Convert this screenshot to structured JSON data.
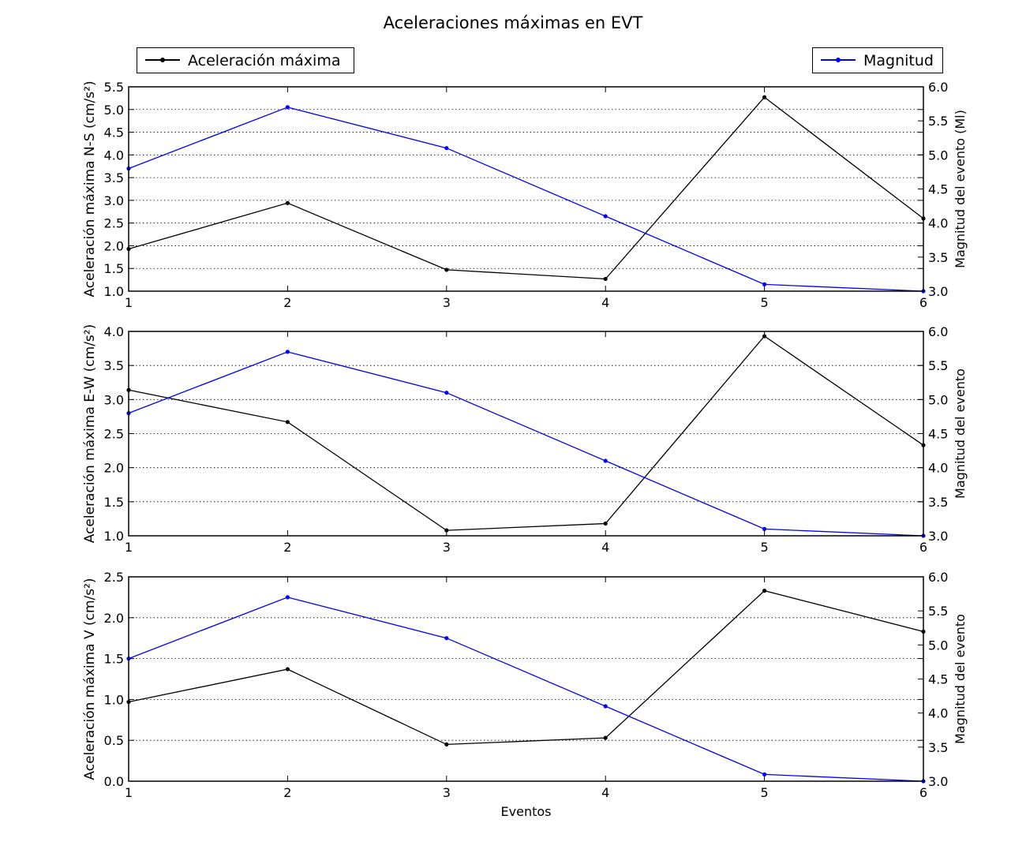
{
  "chart_data": {
    "type": "line",
    "title": "Aceleraciones máximas en EVT",
    "legend": {
      "left": {
        "label": "Aceleración máxima",
        "position": "upper-left",
        "color": "#000000"
      },
      "right": {
        "label": "Magnitud",
        "position": "upper-right",
        "color": "#0000ff"
      }
    },
    "xlabel": "Eventos",
    "x": [
      1,
      2,
      3,
      4,
      5,
      6
    ],
    "xlim": [
      1,
      6
    ],
    "x_ticks": [
      "1",
      "2",
      "3",
      "4",
      "5",
      "6"
    ],
    "grid": "horizontal dotted",
    "panels": [
      {
        "ylabel_left": "Aceleración máxima N-S (cm/s²)",
        "ylim_left": [
          1.0,
          5.5
        ],
        "yticks_left": [
          "1.0",
          "1.5",
          "2.0",
          "2.5",
          "3.0",
          "3.5",
          "4.0",
          "4.5",
          "5.0",
          "5.5"
        ],
        "ylabel_right": "Magnitud del evento (Ml)",
        "ylim_right": [
          3.0,
          6.0
        ],
        "yticks_right": [
          "3.0",
          "3.5",
          "4.0",
          "4.5",
          "5.0",
          "5.5",
          "6.0"
        ],
        "series": [
          {
            "name": "Aceleración máxima",
            "axis": "left",
            "color": "#000000",
            "values": [
              1.93,
              2.94,
              1.47,
              1.27,
              5.27,
              2.6
            ]
          },
          {
            "name": "Magnitud",
            "axis": "right",
            "color": "#0000ff",
            "values": [
              4.8,
              5.7,
              5.1,
              4.1,
              3.1,
              3.0
            ]
          }
        ]
      },
      {
        "ylabel_left": "Aceleración máxima E-W (cm/s²)",
        "ylim_left": [
          1.0,
          4.0
        ],
        "yticks_left": [
          "1.0",
          "1.5",
          "2.0",
          "2.5",
          "3.0",
          "3.5",
          "4.0"
        ],
        "ylabel_right": "Magnitud del evento",
        "ylim_right": [
          3.0,
          6.0
        ],
        "yticks_right": [
          "3.0",
          "3.5",
          "4.0",
          "4.5",
          "5.0",
          "5.5",
          "6.0"
        ],
        "series": [
          {
            "name": "Aceleración máxima",
            "axis": "left",
            "color": "#000000",
            "values": [
              3.14,
              2.67,
              1.08,
              1.18,
              3.93,
              2.33
            ]
          },
          {
            "name": "Magnitud",
            "axis": "right",
            "color": "#0000ff",
            "values": [
              4.8,
              5.7,
              5.1,
              4.1,
              3.1,
              3.0
            ]
          }
        ]
      },
      {
        "ylabel_left": "Aceleración máxima V (cm/s²)",
        "ylim_left": [
          0.0,
          2.5
        ],
        "yticks_left": [
          "0.0",
          "0.5",
          "1.0",
          "1.5",
          "2.0",
          "2.5"
        ],
        "ylabel_right": "Magnitud del evento",
        "ylim_right": [
          3.0,
          6.0
        ],
        "yticks_right": [
          "3.0",
          "3.5",
          "4.0",
          "4.5",
          "5.0",
          "5.5",
          "6.0"
        ],
        "series": [
          {
            "name": "Aceleración máxima",
            "axis": "left",
            "color": "#000000",
            "values": [
              0.97,
              1.37,
              0.45,
              0.53,
              2.33,
              1.83
            ]
          },
          {
            "name": "Magnitud",
            "axis": "right",
            "color": "#0000ff",
            "values": [
              4.8,
              5.7,
              5.1,
              4.1,
              3.1,
              3.0
            ]
          }
        ]
      }
    ]
  }
}
